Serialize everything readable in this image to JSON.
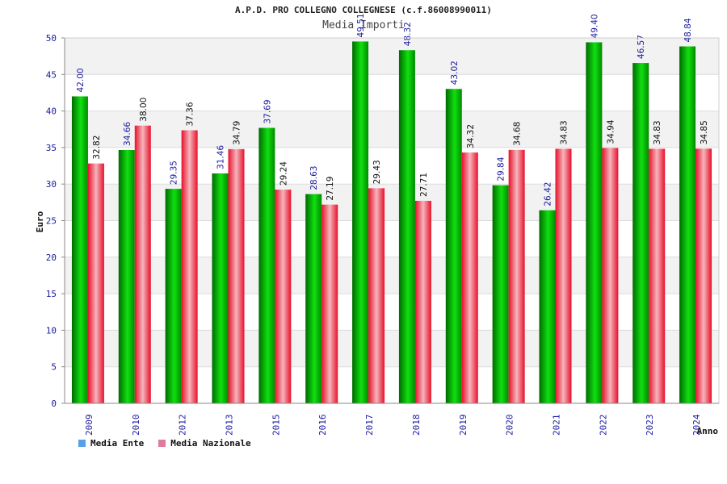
{
  "colors": {
    "ente": "#00b800",
    "nazionale": "#f0304a",
    "legend_ente": "#5aa0e6",
    "legend_nazionale": "#e07aa0",
    "tick_text": "#1a1aa0",
    "label_ente": "#1a1aa0",
    "label_nazionale": "#111111"
  },
  "chart_data": {
    "type": "bar",
    "title": "A.P.D. PRO COLLEGNO COLLEGNESE (c.f.86008990011)",
    "subtitle": "Media Importi",
    "xlabel": "Anno",
    "ylabel": "Euro",
    "ylim": [
      0,
      50
    ],
    "yticks": [
      0,
      5,
      10,
      15,
      20,
      25,
      30,
      35,
      40,
      45,
      50
    ],
    "grid": true,
    "legend_position": "bottom-left",
    "categories": [
      "2009",
      "2010",
      "2012",
      "2013",
      "2015",
      "2016",
      "2017",
      "2018",
      "2019",
      "2020",
      "2021",
      "2022",
      "2023",
      "2024"
    ],
    "series": [
      {
        "name": "Media Ente",
        "values": [
          42.0,
          34.66,
          29.35,
          31.46,
          37.69,
          28.63,
          49.51,
          48.32,
          43.02,
          29.84,
          26.42,
          49.4,
          46.57,
          48.84
        ],
        "labels": [
          "42.00",
          "34.66",
          "29.35",
          "31.46",
          "37.69",
          "28.63",
          "49.51",
          "48.32",
          "43.02",
          "29.84",
          "26.42",
          "49.40",
          "46.57",
          "48.84"
        ]
      },
      {
        "name": "Media Nazionale",
        "values": [
          32.82,
          38.0,
          37.36,
          34.79,
          29.24,
          27.19,
          29.43,
          27.71,
          34.32,
          34.68,
          34.83,
          34.94,
          34.83,
          34.85
        ],
        "labels": [
          "32.82",
          "38.00",
          "37.36",
          "34.79",
          "29.24",
          "27.19",
          "29.43",
          "27.71",
          "34.32",
          "34.68",
          "34.83",
          "34.94",
          "34.83",
          "34.85"
        ]
      }
    ]
  }
}
